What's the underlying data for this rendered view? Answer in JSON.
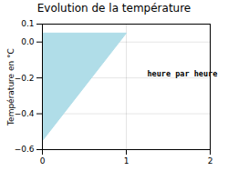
{
  "chart_data": {
    "type": "polygon",
    "title": "Evolution de la température",
    "y_label": "Température en °C",
    "x": [
      0,
      0,
      1,
      0
    ],
    "values": [
      -0.55,
      0.05,
      0.05,
      -0.55
    ],
    "color": "#b0dde8",
    "xlim": [
      0,
      2
    ],
    "ylim": [
      -0.6,
      0.1
    ],
    "xticks": [
      0,
      1,
      2
    ],
    "yticks": [
      -0.6,
      -0.4,
      -0.2,
      {
        "value": 0.0,
        "label": "0.0"
      },
      0.1
    ],
    "grid": true,
    "annotations": [
      {
        "text": "heure par heure",
        "x": 1.25,
        "y": -0.18
      }
    ]
  }
}
